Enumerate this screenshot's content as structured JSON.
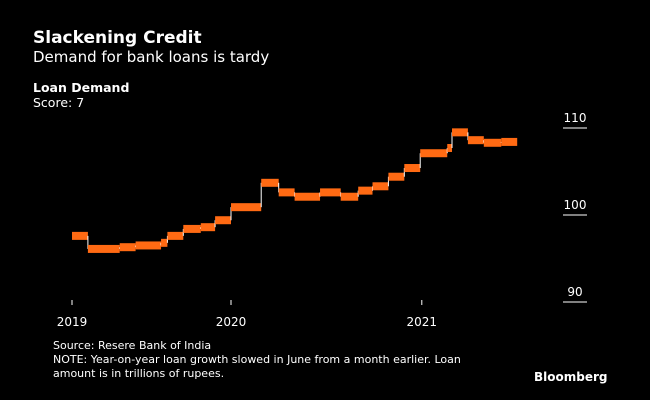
{
  "header": {
    "title": "Slackening Credit",
    "subtitle": "Demand for bank loans is tardy"
  },
  "legend": {
    "name": "Loan Demand",
    "score": "Score: 7"
  },
  "footer": {
    "source": "Source: Resere Bank of India",
    "note_line1": "NOTE: Year-on-year loan growth slowed in June from a month earlier. Loan",
    "note_line2": "amount is in trillions of rupees.",
    "brand": "Bloomberg"
  },
  "colors": {
    "series": "#ff6a13",
    "connector": "#ffffff",
    "background": "#000000"
  },
  "chart_data": {
    "type": "line",
    "style": "step",
    "title": "Slackening Credit",
    "subtitle": "Demand for bank loans is tardy",
    "series": [
      {
        "name": "Loan Demand",
        "x_unit": "months since Jan 2019",
        "steps": [
          [
            0,
            97.6
          ],
          [
            1,
            96.1
          ],
          [
            3,
            96.3
          ],
          [
            4,
            96.5
          ],
          [
            5.6,
            96.8
          ],
          [
            6,
            97.6
          ],
          [
            7,
            98.4
          ],
          [
            8.1,
            98.6
          ],
          [
            9,
            99.4
          ],
          [
            10,
            100.9
          ],
          [
            11.9,
            103.7
          ],
          [
            13,
            102.6
          ],
          [
            14,
            102.1
          ],
          [
            15.6,
            102.6
          ],
          [
            16.9,
            102.1
          ],
          [
            18,
            102.8
          ],
          [
            18.9,
            103.3
          ],
          [
            19.9,
            104.4
          ],
          [
            20.9,
            105.4
          ],
          [
            21.9,
            107.1
          ],
          [
            23.6,
            107.7
          ],
          [
            23.9,
            109.5
          ],
          [
            24.9,
            108.6
          ],
          [
            25.9,
            108.3
          ],
          [
            27,
            108.4
          ]
        ],
        "end": 28
      }
    ],
    "xticks": [
      {
        "x": 0,
        "label": "2019"
      },
      {
        "x": 10,
        "label": "2020"
      },
      {
        "x": 22,
        "label": "2021"
      }
    ],
    "yticks": [
      90,
      100,
      110
    ],
    "ylim": [
      90,
      110
    ],
    "xlim": [
      0,
      28
    ],
    "y_axis_side": "right",
    "grid": false
  }
}
